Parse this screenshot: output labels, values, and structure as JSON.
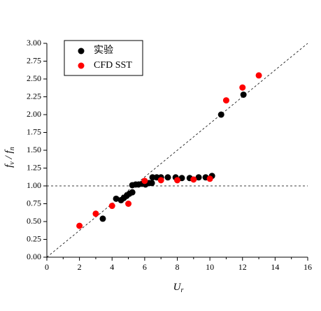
{
  "chart_data": {
    "type": "scatter",
    "xlabel": {
      "parts": [
        "U",
        "r"
      ]
    },
    "ylabel": {
      "parts": [
        "f",
        "v",
        " / f",
        "n"
      ]
    },
    "xlim": [
      0,
      16
    ],
    "xticks": [
      0,
      2,
      4,
      6,
      8,
      10,
      12,
      14,
      16
    ],
    "ylim": [
      0,
      3
    ],
    "yticks": [
      {
        "value": 0,
        "label": "0.00"
      },
      {
        "value": 0.25,
        "label": "0.25"
      },
      {
        "value": 0.5,
        "label": "0.50"
      },
      {
        "value": 0.75,
        "label": "0.75"
      },
      {
        "value": 1,
        "label": "1.00"
      },
      {
        "value": 1.25,
        "label": "1.25"
      },
      {
        "value": 1.5,
        "label": "1.50"
      },
      {
        "value": 1.75,
        "label": "1.75"
      },
      {
        "value": 2,
        "label": "2.00"
      },
      {
        "value": 2.25,
        "label": "2.25"
      },
      {
        "value": 2.5,
        "label": "2.50"
      },
      {
        "value": 2.75,
        "label": "2.75"
      },
      {
        "value": 3,
        "label": "3.00"
      }
    ],
    "legend": "top-left",
    "reference_lines": [
      {
        "x": [
          0,
          16
        ],
        "y": [
          0,
          3
        ]
      },
      {
        "x": [
          0,
          16
        ],
        "y": [
          1,
          1
        ]
      }
    ],
    "series": [
      {
        "name": "实验",
        "color": "#000000",
        "x": [
          3.43,
          4.25,
          4.55,
          4.72,
          4.89,
          5.06,
          5.24,
          5.24,
          5.45,
          5.62,
          5.84,
          6.05,
          6.27,
          6.44,
          6.48,
          6.74,
          7.0,
          7.42,
          7.9,
          8.28,
          8.76,
          9.31,
          9.74,
          10.13,
          10.69,
          12.06
        ],
        "values": [
          0.54,
          0.82,
          0.8,
          0.83,
          0.86,
          0.89,
          0.91,
          1.01,
          1.02,
          1.02,
          1.03,
          1.02,
          1.04,
          1.04,
          1.12,
          1.12,
          1.12,
          1.12,
          1.12,
          1.11,
          1.11,
          1.12,
          1.12,
          1.14,
          2.0,
          2.28
        ]
      },
      {
        "name": "CFD SST",
        "color": "#ff0000",
        "x": [
          2,
          3,
          4,
          5,
          6,
          7,
          8,
          9,
          10,
          11,
          12,
          13
        ],
        "values": [
          0.44,
          0.61,
          0.72,
          0.75,
          1.07,
          1.08,
          1.08,
          1.09,
          1.1,
          2.2,
          2.38,
          2.55
        ]
      }
    ]
  }
}
